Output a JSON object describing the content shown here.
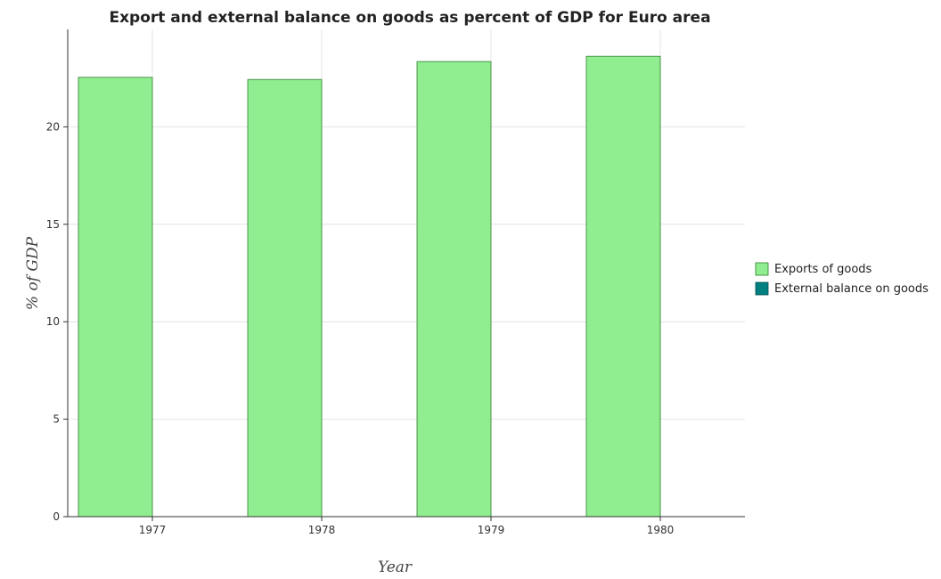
{
  "chart_data": {
    "type": "bar",
    "title": "Export and external balance on goods as percent of GDP for Euro area",
    "xlabel": "Year",
    "ylabel": "% of GDP",
    "categories": [
      "1977",
      "1978",
      "1979",
      "1980"
    ],
    "series": [
      {
        "name": "Exports of goods",
        "values": [
          22.54,
          22.43,
          23.35,
          23.62
        ],
        "color": "#90ee90",
        "stroke": "#2e7d2e"
      },
      {
        "name": "External balance on goods",
        "values": [
          0,
          0,
          0,
          0
        ],
        "color": "#008080",
        "stroke": "#004d4d"
      }
    ],
    "ylim": [
      0,
      25
    ],
    "yticks": [
      "0",
      "5",
      "10",
      "15",
      "20"
    ],
    "grid": true,
    "legend_position": "right"
  }
}
